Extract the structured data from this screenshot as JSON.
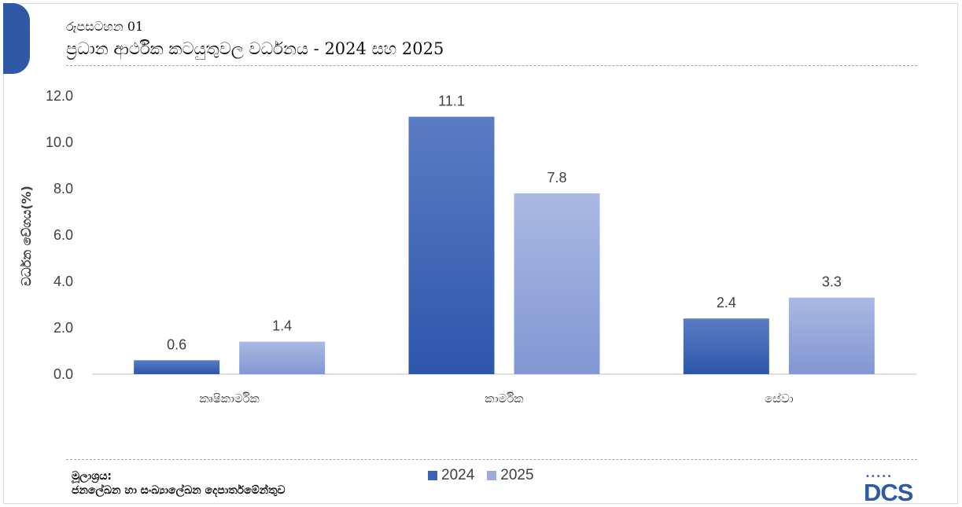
{
  "header": {
    "figure_label": "රූපසටහන 01",
    "title": "ප්‍රධාන ආර්ථික කටයුතුවල වර්ධනය - 2024 සහ 2025"
  },
  "source": {
    "label": "මූලාශ්‍රය:",
    "text": "ජනලේඛන හා සංඛ්‍යාලේඛන දෙපාර්තමේන්තුව"
  },
  "logo": {
    "text": "DCS",
    "dots": "•••••"
  },
  "colors": {
    "accent": "#2f59a4",
    "series_2024": "#3a63b8",
    "series_2025": "#9aabdc",
    "axis": "#595959"
  },
  "chart_data": {
    "type": "bar",
    "title": "ප්‍රධාන ආර්ථික කටයුතුවල වර්ධනය - 2024 සහ 2025",
    "xlabel": "",
    "ylabel": "වර්ධන වේගය(%)",
    "categories": [
      "කෘෂිකාර්මික",
      "කාර්මික",
      "සේවා"
    ],
    "series": [
      {
        "name": "2024",
        "values": [
          0.6,
          11.1,
          2.4
        ]
      },
      {
        "name": "2025",
        "values": [
          1.4,
          7.8,
          3.3
        ]
      }
    ],
    "y_ticks": [
      "0.0",
      "2.0",
      "4.0",
      "6.0",
      "8.0",
      "10.0",
      "12.0"
    ],
    "ylim": [
      0,
      12
    ],
    "grid": false,
    "legend_position": "bottom"
  }
}
